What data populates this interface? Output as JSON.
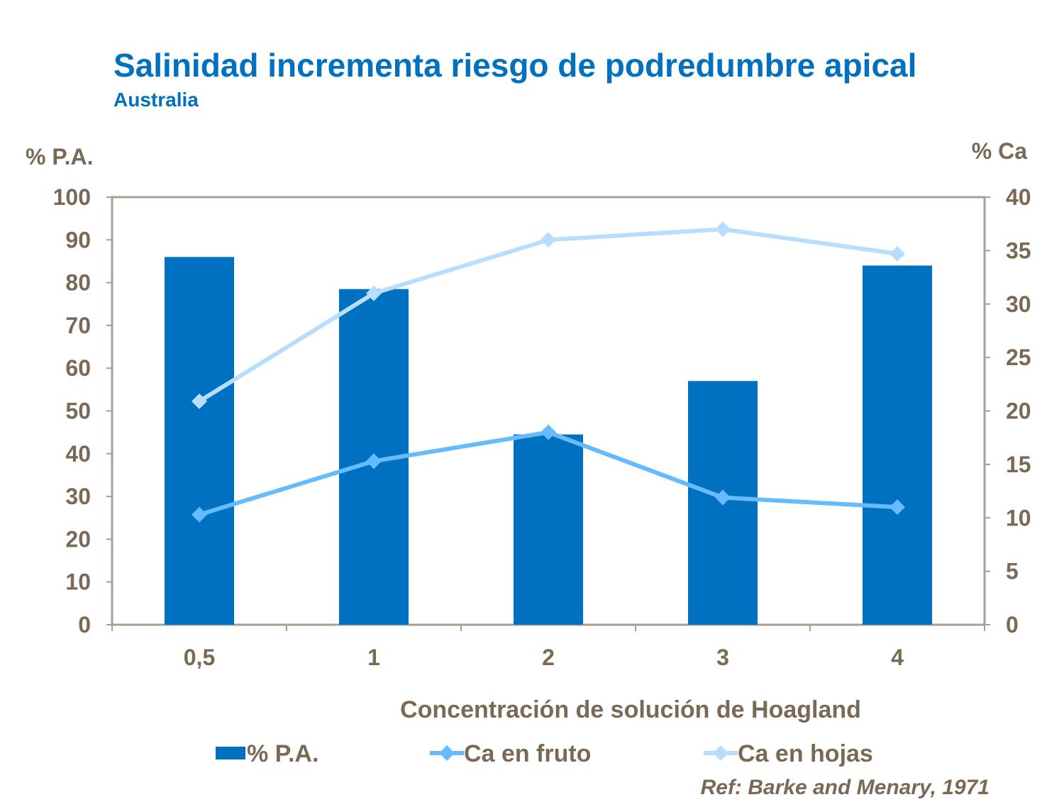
{
  "chart_data": {
    "type": "bar+line",
    "title": "Salinidad incrementa riesgo de podredumbre apical",
    "subtitle": "Australia",
    "xlabel": "Concentración de solución de Hoagland",
    "ylabel_left": "% P.A.",
    "ylabel_right": "% Ca",
    "categories": [
      "0,5",
      "1",
      "2",
      "3",
      "4"
    ],
    "ylim_left": [
      0,
      100
    ],
    "yticks_left": [
      0,
      10,
      20,
      30,
      40,
      50,
      60,
      70,
      80,
      90,
      100
    ],
    "ylim_right": [
      0,
      40
    ],
    "yticks_right": [
      0,
      5,
      10,
      15,
      20,
      25,
      30,
      35,
      40
    ],
    "grid": false,
    "legend_position": "bottom",
    "series": [
      {
        "name": "% P.A.",
        "type": "bar",
        "axis": "left",
        "color": "#0070C0",
        "values": [
          86,
          78.5,
          44.5,
          57,
          84
        ]
      },
      {
        "name": "Ca en fruto",
        "type": "line",
        "axis": "right",
        "marker": "diamond",
        "color": "#66BBFF",
        "values": [
          10.3,
          15.3,
          18.0,
          11.9,
          11.0
        ]
      },
      {
        "name": "Ca en hojas",
        "type": "line",
        "axis": "right",
        "marker": "diamond",
        "color": "#B7DEFF",
        "values": [
          20.9,
          31.0,
          36.0,
          37.0,
          34.7
        ]
      }
    ],
    "annotation": "Ref: Barke and Menary, 1971"
  },
  "colors": {
    "title": "#0070C0",
    "text": "#7A6A55",
    "axis": "#A89F92"
  }
}
